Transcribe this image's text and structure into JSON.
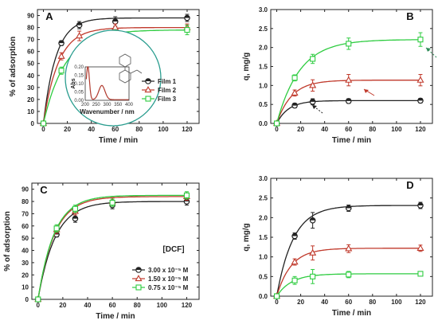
{
  "chart_data": [
    {
      "type": "line",
      "panel": "A",
      "xlabel": "Time / min",
      "ylabel": "% of adsorption",
      "xlim": [
        -5,
        130
      ],
      "ylim": [
        0,
        95
      ],
      "xticks": [
        0,
        20,
        40,
        60,
        80,
        100,
        120
      ],
      "yticks": [
        0,
        10,
        20,
        30,
        40,
        50,
        60,
        70,
        80,
        90
      ],
      "legend_placement": "center-right",
      "series": [
        {
          "name": "Film 1",
          "color": "#222222",
          "marker": "circle",
          "x": [
            0,
            15,
            30,
            60,
            120
          ],
          "y": [
            0,
            67,
            82,
            85,
            88
          ],
          "err": [
            0,
            2,
            3,
            4,
            3
          ]
        },
        {
          "name": "Film 2",
          "color": "#c0392b",
          "marker": "triangle",
          "x": [
            0,
            15,
            30,
            60,
            120
          ],
          "y": [
            0,
            56,
            73,
            80,
            80
          ],
          "err": [
            0,
            3,
            4,
            3,
            3
          ]
        },
        {
          "name": "Film 3",
          "color": "#2ecc40",
          "marker": "square",
          "x": [
            0,
            15,
            30,
            60,
            120
          ],
          "y": [
            0,
            44,
            61,
            74,
            78
          ],
          "err": [
            0,
            3,
            3,
            4,
            4
          ]
        }
      ],
      "inset": {
        "xlabel": "Wavenumber / nm",
        "ylabel": "Abs",
        "xticks": [
          200,
          250,
          300,
          350,
          400
        ],
        "yticks": [
          "0.00",
          "0.05",
          "0.10",
          "0.15",
          "0.20"
        ],
        "xlim": [
          200,
          400
        ],
        "ylim": [
          0,
          0.2
        ]
      }
    },
    {
      "type": "line",
      "panel": "B",
      "xlabel": "Time / min",
      "ylabel": "q, mg/g",
      "xlim": [
        -5,
        130
      ],
      "ylim": [
        0,
        3.0
      ],
      "xticks": [
        0,
        20,
        40,
        60,
        80,
        100,
        120
      ],
      "yticks": [
        "0.0",
        "0.5",
        "1.0",
        "1.5",
        "2.0",
        "2.5",
        "3.0"
      ],
      "series": [
        {
          "color": "#222222",
          "marker": "circle",
          "x": [
            0,
            15,
            30,
            60,
            120
          ],
          "y": [
            0,
            0.47,
            0.57,
            0.59,
            0.6
          ],
          "err": [
            0,
            0.06,
            0.08,
            0.06,
            0.06
          ]
        },
        {
          "color": "#c0392b",
          "marker": "triangle",
          "x": [
            0,
            15,
            30,
            60,
            120
          ],
          "y": [
            0,
            0.8,
            1.0,
            1.14,
            1.14
          ],
          "err": [
            0,
            0.08,
            0.15,
            0.15,
            0.15
          ]
        },
        {
          "color": "#2ecc40",
          "marker": "square",
          "x": [
            0,
            15,
            30,
            60,
            120
          ],
          "y": [
            0,
            1.2,
            1.7,
            2.1,
            2.21
          ],
          "err": [
            0,
            0.08,
            0.12,
            0.15,
            0.18
          ]
        }
      ]
    },
    {
      "type": "line",
      "panel": "C",
      "xlabel": "Time / min",
      "ylabel": "% of adsorption",
      "xlim": [
        -5,
        130
      ],
      "ylim": [
        0,
        95
      ],
      "xticks": [
        0,
        20,
        40,
        60,
        80,
        100,
        120
      ],
      "yticks": [
        0,
        10,
        20,
        30,
        40,
        50,
        60,
        70,
        80,
        90
      ],
      "legend_title": "[DCF]",
      "legend_placement": "bottom-right",
      "series": [
        {
          "name": "3.00 x 10⁻⁵ M",
          "color": "#222222",
          "marker": "circle",
          "x": [
            0,
            15,
            30,
            60,
            120
          ],
          "y": [
            0,
            53,
            66,
            77,
            80
          ],
          "err": [
            0,
            2,
            3,
            3,
            3
          ]
        },
        {
          "name": "1.50 x 10⁻⁵ M",
          "color": "#c0392b",
          "marker": "triangle",
          "x": [
            0,
            15,
            30,
            60,
            120
          ],
          "y": [
            0,
            57,
            72,
            80,
            84
          ],
          "err": [
            0,
            3,
            3,
            3,
            3
          ]
        },
        {
          "name": "0.75 x 10⁻⁵ M",
          "color": "#2ecc40",
          "marker": "square",
          "x": [
            0,
            15,
            30,
            60,
            120
          ],
          "y": [
            0,
            58,
            74,
            79,
            85
          ],
          "err": [
            0,
            3,
            3,
            3,
            3
          ]
        }
      ]
    },
    {
      "type": "line",
      "panel": "D",
      "xlabel": "Time / min",
      "ylabel": "q, mg/g",
      "xlim": [
        -5,
        130
      ],
      "ylim": [
        0,
        3.0
      ],
      "xticks": [
        0,
        20,
        40,
        60,
        80,
        100,
        120
      ],
      "yticks": [
        "0.0",
        "0.5",
        "1.0",
        "1.5",
        "2.0",
        "2.5",
        "3.0"
      ],
      "series": [
        {
          "color": "#222222",
          "marker": "circle",
          "x": [
            0,
            15,
            30,
            60,
            120
          ],
          "y": [
            0,
            1.53,
            1.93,
            2.24,
            2.31
          ],
          "err": [
            0,
            0.08,
            0.2,
            0.08,
            0.08
          ]
        },
        {
          "color": "#c0392b",
          "marker": "triangle",
          "x": [
            0,
            15,
            30,
            60,
            120
          ],
          "y": [
            0,
            0.87,
            1.1,
            1.21,
            1.22
          ],
          "err": [
            0,
            0.08,
            0.18,
            0.1,
            0.08
          ]
        },
        {
          "color": "#2ecc40",
          "marker": "square",
          "x": [
            0,
            15,
            30,
            60,
            120
          ],
          "y": [
            0,
            0.4,
            0.5,
            0.55,
            0.57
          ],
          "err": [
            0,
            0.1,
            0.18,
            0.08,
            0.05
          ]
        }
      ]
    }
  ]
}
